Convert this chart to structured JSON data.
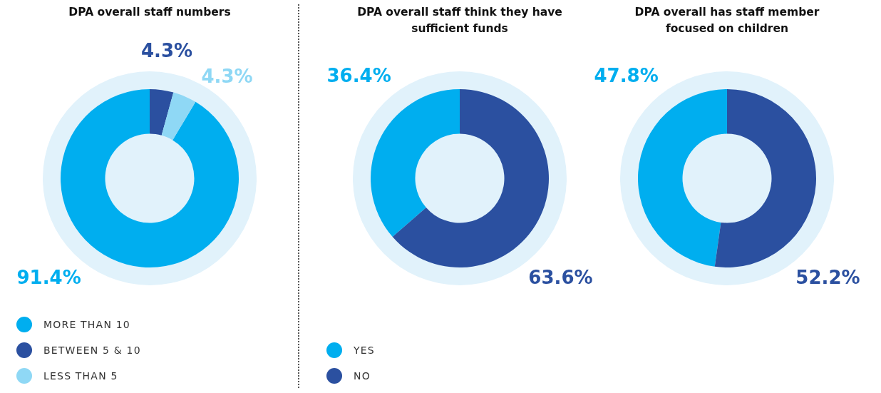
{
  "chart_data": [
    {
      "type": "donut",
      "title": "DPA overall staff numbers",
      "categories": [
        "MORE THAN 10",
        "BETWEEN 5 & 10",
        "LESS THAN 5"
      ],
      "values": [
        91.4,
        4.3,
        4.3
      ],
      "colors": [
        "#00aeef",
        "#2b50a0",
        "#8fd8f5"
      ],
      "value_labels": [
        "91.4%",
        "4.3%",
        "4.3%"
      ],
      "legend": "bottom left"
    },
    {
      "type": "donut",
      "title": "DPA overall staff think they have sufficient funds",
      "categories": [
        "YES",
        "NO"
      ],
      "values": [
        36.4,
        63.6
      ],
      "colors": [
        "#00aeef",
        "#2b50a0"
      ],
      "value_labels": [
        "36.4%",
        "63.6%"
      ],
      "legend": "bottom left"
    },
    {
      "type": "donut",
      "title": "DPA overall has staff member focused on children",
      "categories": [
        null,
        null
      ],
      "values": [
        47.8,
        52.2
      ],
      "colors": [
        "#00aeef",
        "#2b50a0"
      ],
      "value_labels": [
        "47.8%",
        "52.2%"
      ]
    }
  ]
}
